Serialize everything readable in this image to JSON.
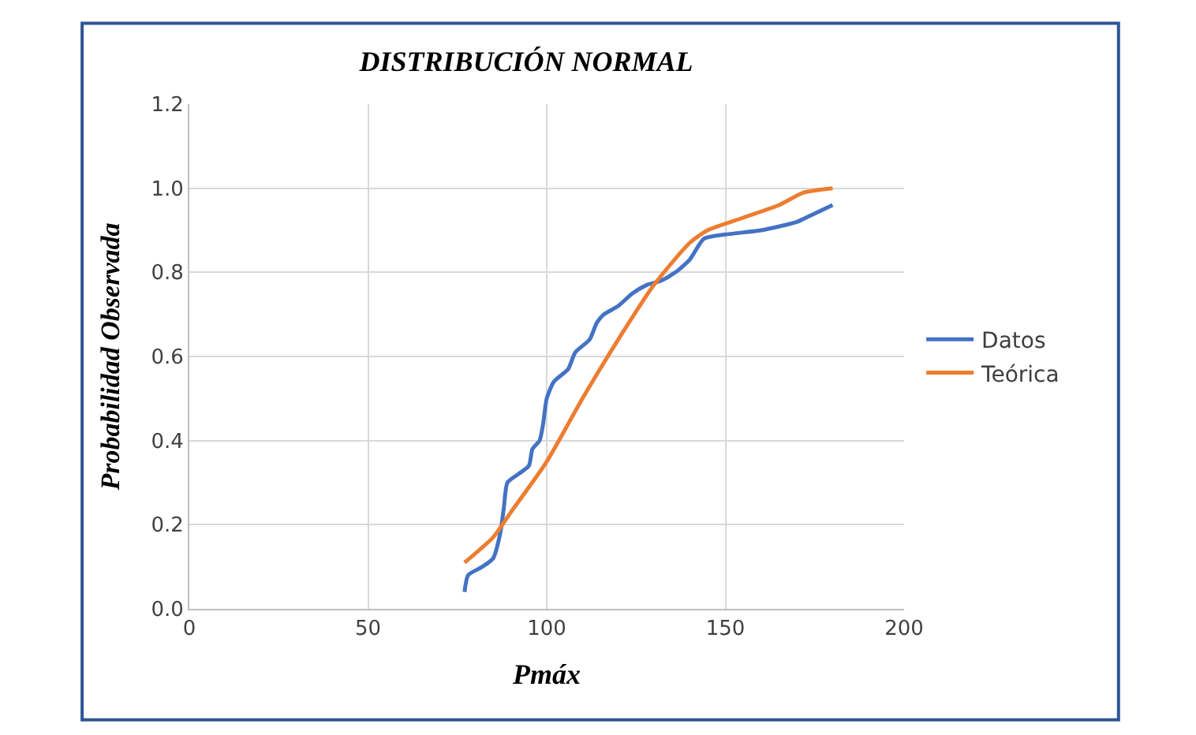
{
  "chart_data": {
    "type": "line",
    "title": "DISTRIBUCIÓN NORMAL",
    "xlabel": "Pmáx",
    "ylabel": "Probabilidad Observada",
    "xlim": [
      0,
      200
    ],
    "xticks": [
      0,
      50,
      100,
      150,
      200
    ],
    "ylim": [
      0,
      1.2
    ],
    "yticks": [
      {
        "value": 0,
        "label": "0.0"
      },
      {
        "value": 0.2,
        "label": "0.2"
      },
      {
        "value": 0.4,
        "label": "0.4"
      },
      {
        "value": 0.6,
        "label": "0.6"
      },
      {
        "value": 0.8,
        "label": "0.8"
      },
      {
        "value": 1.0,
        "label": "1.0"
      },
      {
        "value": 1.2,
        "label": "1.2"
      }
    ],
    "grid": true,
    "legend": "right",
    "marker": "none",
    "line_style": "solid",
    "series": [
      {
        "name": "Datos",
        "color": "#4472c4",
        "x": [
          77,
          78,
          82,
          85,
          87,
          88,
          89,
          92,
          95,
          96,
          98,
          99,
          100,
          102,
          106,
          108,
          112,
          114,
          116,
          120,
          124,
          128,
          132,
          136,
          140,
          144,
          150,
          160,
          170,
          175,
          180
        ],
        "values": [
          0.04,
          0.08,
          0.1,
          0.12,
          0.18,
          0.24,
          0.3,
          0.32,
          0.34,
          0.38,
          0.4,
          0.44,
          0.5,
          0.54,
          0.57,
          0.61,
          0.64,
          0.68,
          0.7,
          0.72,
          0.75,
          0.77,
          0.78,
          0.8,
          0.83,
          0.88,
          0.89,
          0.9,
          0.92,
          0.94,
          0.96
        ]
      },
      {
        "name": "Teórica",
        "color": "#ed7d31",
        "x": [
          77,
          85,
          90,
          100,
          110,
          120,
          130,
          140,
          145,
          155,
          165,
          172,
          180
        ],
        "values": [
          0.11,
          0.17,
          0.23,
          0.35,
          0.5,
          0.64,
          0.77,
          0.87,
          0.9,
          0.93,
          0.96,
          0.99,
          1.0
        ]
      }
    ]
  }
}
